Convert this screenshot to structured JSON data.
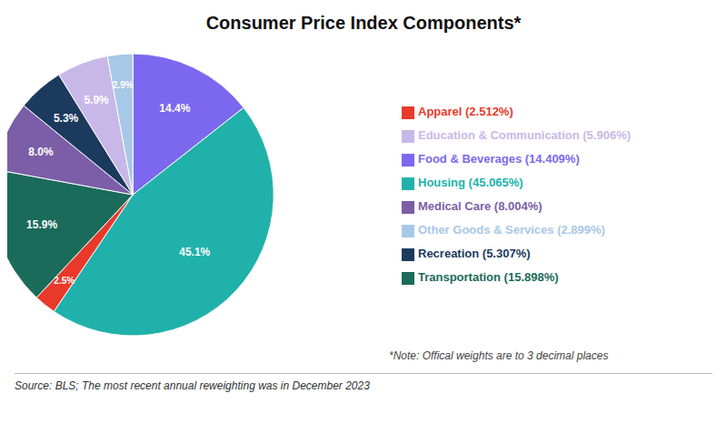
{
  "chart_data": {
    "type": "pie",
    "title": "Consumer Price Index Components*",
    "categories": [
      "Food & Beverages (14.409%)",
      "Housing (45.065%)",
      "Apparel (2.512%)",
      "Transportation (15.898%)",
      "Medical Care (8.004%)",
      "Recreation (5.307%)",
      "Education & Communication (5.906%)",
      "Other Goods & Services (2.899%)"
    ],
    "values": [
      14.409,
      45.065,
      2.512,
      15.898,
      8.004,
      5.307,
      5.906,
      2.899
    ],
    "value_labels": [
      "14.4%",
      "45.1%",
      "2.5%",
      "15.9%",
      "8.0%",
      "5.3%",
      "5.9%",
      "2.9%"
    ],
    "data_labels": true,
    "colors": [
      "#7B68EE",
      "#20B2AA",
      "#E8392A",
      "#1B6B5A",
      "#7B5EA7",
      "#1C3A5E",
      "#C8B8E8",
      "#A8C8E8"
    ],
    "legend": "right",
    "annotations": [
      "*Note: Offical weights are to 3 decimal places",
      "Source: BLS; The most recent annual reweighting was in December 2023"
    ]
  }
}
